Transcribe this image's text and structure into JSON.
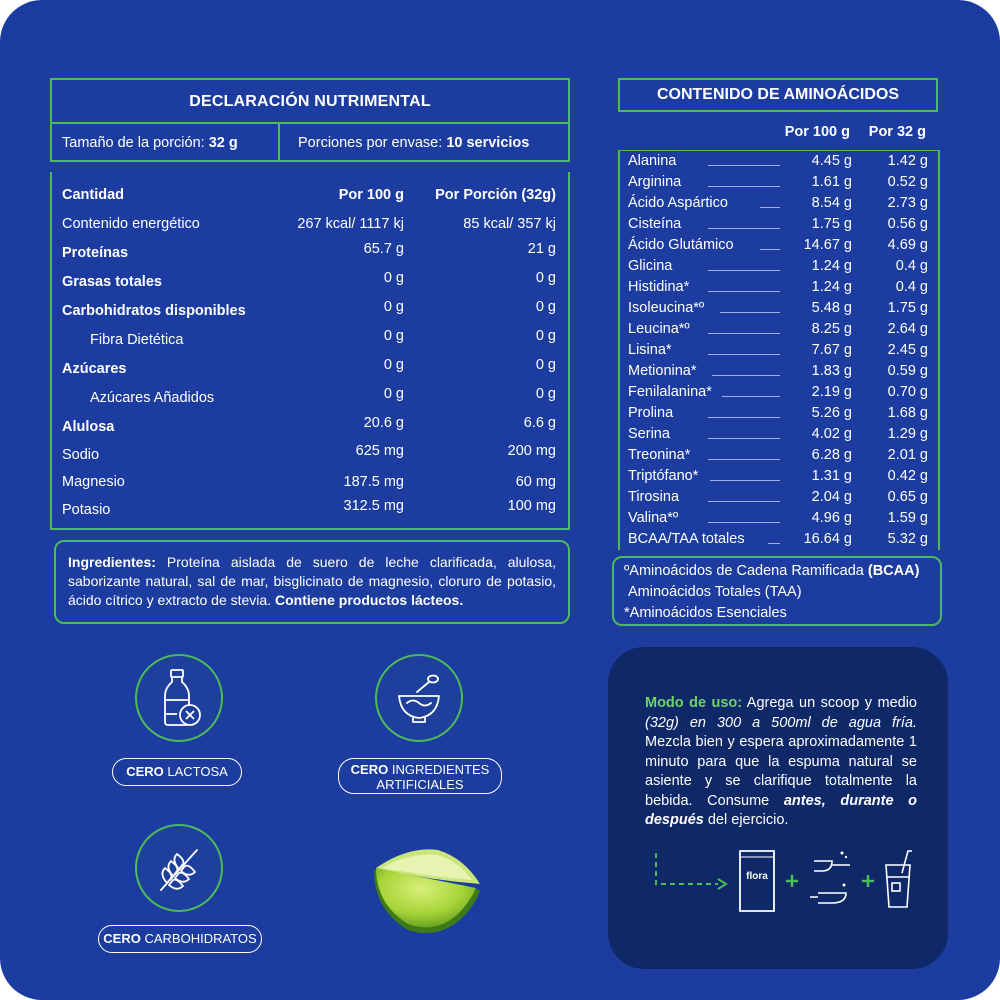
{
  "nutrition": {
    "title": "DECLARACIÓN NUTRIMENTAL",
    "serving_size_label": "Tamaño de la porción:",
    "serving_size_value": "32 g",
    "servings_label": "Porciones por envase:",
    "servings_value": "10 servicios",
    "col_label": "Cantidad",
    "col_100": "Por 100 g",
    "col_portion": "Por Porción (32g)",
    "rows": [
      {
        "label": "Contenido energético",
        "v100": "267 kcal/ 1117 kj",
        "vp": "85 kcal/ 357 kj"
      },
      {
        "label": "Proteínas",
        "v100": "65.7 g",
        "vp": "21 g"
      },
      {
        "label": "Grasas totales",
        "v100": "0 g",
        "vp": "0 g"
      },
      {
        "label": "Carbohidratos disponibles",
        "v100": "0 g",
        "vp": "0 g"
      },
      {
        "label": "Fibra Dietética",
        "v100": "0 g",
        "vp": "0 g"
      },
      {
        "label": "Azúcares",
        "v100": "0 g",
        "vp": "0 g"
      },
      {
        "label": "Azúcares Añadidos",
        "v100": "0 g",
        "vp": "0 g"
      },
      {
        "label": "Alulosa",
        "v100": "20.6 g",
        "vp": "6.6 g"
      },
      {
        "label": "Sodio",
        "v100": "625 mg",
        "vp": "200 mg"
      },
      {
        "label": "Magnesio",
        "v100": "187.5 mg",
        "vp": "60 mg"
      },
      {
        "label": "Potasio",
        "v100": "312.5 mg",
        "vp": "100 mg"
      }
    ]
  },
  "ingredients": {
    "label": "Ingredientes:",
    "text": " Proteína aislada de suero de leche clarificada, alulosa, saborizante natural, sal de mar, bisglicinato de magnesio, cloruro de potasio, ácido cítrico y extracto de stevia. ",
    "warning": "Contiene productos lácteos."
  },
  "amino": {
    "title": "CONTENIDO DE AMINOÁCIDOS",
    "col_100": "Por 100 g",
    "col_32": "Por 32 g",
    "rows": [
      {
        "label": "Alanina",
        "v100": "4.45 g",
        "v32": "1.42 g"
      },
      {
        "label": "Arginina",
        "v100": "1.61 g",
        "v32": "0.52 g"
      },
      {
        "label": "Ácido Aspártico",
        "v100": "8.54 g",
        "v32": "2.73 g"
      },
      {
        "label": "Cisteína",
        "v100": "1.75 g",
        "v32": "0.56 g"
      },
      {
        "label": "Ácido Glutámico",
        "v100": "14.67 g",
        "v32": "4.69 g"
      },
      {
        "label": "Glicina",
        "v100": "1.24 g",
        "v32": "0.4 g"
      },
      {
        "label": "Histidina*",
        "v100": "1.24 g",
        "v32": "0.4 g"
      },
      {
        "label": "Isoleucina*º",
        "v100": "5.48 g",
        "v32": "1.75 g"
      },
      {
        "label": "Leucina*º",
        "v100": "8.25 g",
        "v32": "2.64 g"
      },
      {
        "label": "Lisina*",
        "v100": "7.67 g",
        "v32": "2.45 g"
      },
      {
        "label": "Metionina*",
        "v100": "1.83 g",
        "v32": "0.59 g"
      },
      {
        "label": "Fenilalanina*",
        "v100": "2.19 g",
        "v32": "0.70 g"
      },
      {
        "label": "Prolina",
        "v100": "5.26 g",
        "v32": "1.68 g"
      },
      {
        "label": "Serina",
        "v100": "4.02 g",
        "v32": "1.29 g"
      },
      {
        "label": "Treonina*",
        "v100": "6.28 g",
        "v32": "2.01 g"
      },
      {
        "label": "Triptófano*",
        "v100": "1.31 g",
        "v32": "0.42 g"
      },
      {
        "label": "Tirosina",
        "v100": "2.04 g",
        "v32": "0.65 g"
      },
      {
        "label": "Valina*º",
        "v100": "4.96 g",
        "v32": "1.59 g"
      },
      {
        "label": "BCAA/TAA totales",
        "v100": "16.64 g",
        "v32": "5.32 g"
      }
    ],
    "note1_a": "ºAminoácidos de Cadena Ramificada ",
    "note1_b": "(BCAA)",
    "note2": "Aminoácidos Totales (TAA)",
    "note3": "*Aminoácidos Esenciales"
  },
  "badges": {
    "lactose_bold": "CERO",
    "lactose_text": " LACTOSA",
    "artificial_bold": "CERO",
    "artificial_text1": " INGREDIENTES",
    "artificial_text2": "ARTIFICIALES",
    "carbs_bold": "CERO",
    "carbs_text": " CARBOHIDRATOS"
  },
  "usage": {
    "label": "Modo de uso:",
    "t1": " Agrega un scoop y medio ",
    "t2": "(32g) en 300 a 500ml de agua fría.",
    "t3": " Mezcla bien y espera aproximadamente 1 minuto para que la espuma natural se asiente y se clarifique totalmente la bebida. Consume ",
    "t4": "antes, durante o después",
    "t5": " del ejercicio.",
    "bag_label": "flora"
  },
  "colors": {
    "background": "#1c3d9f",
    "accent_green": "#4cbb5a",
    "usage_panel": "#0f2868"
  }
}
